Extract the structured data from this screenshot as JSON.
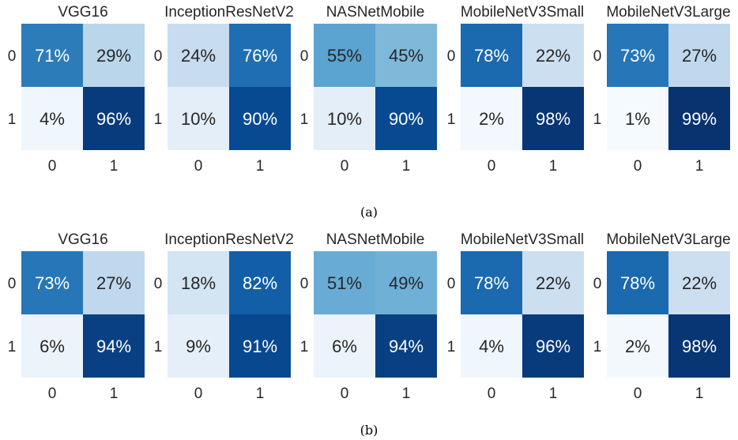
{
  "colors": {
    "cmap": [
      "#f7fbff",
      "#deebf7",
      "#c6dbef",
      "#9ecae1",
      "#6baed6",
      "#4292c6",
      "#2171b5",
      "#08519c",
      "#08306b"
    ],
    "text_dark": "#262626",
    "text_light": "#ffffff"
  },
  "chart_data": [
    {
      "type": "heatmap",
      "caption": "(a)",
      "tick_labels": [
        "0",
        "1"
      ],
      "panels": [
        {
          "title": "VGG16",
          "values": [
            [
              71,
              29
            ],
            [
              4,
              96
            ]
          ]
        },
        {
          "title": "InceptionResNetV2",
          "values": [
            [
              24,
              76
            ],
            [
              10,
              90
            ]
          ]
        },
        {
          "title": "NASNetMobile",
          "values": [
            [
              55,
              45
            ],
            [
              10,
              90
            ]
          ]
        },
        {
          "title": "MobileNetV3Small",
          "values": [
            [
              78,
              22
            ],
            [
              2,
              98
            ]
          ]
        },
        {
          "title": "MobileNetV3Large",
          "values": [
            [
              73,
              27
            ],
            [
              1,
              99
            ]
          ]
        }
      ]
    },
    {
      "type": "heatmap",
      "caption": "(b)",
      "tick_labels": [
        "0",
        "1"
      ],
      "panels": [
        {
          "title": "VGG16",
          "values": [
            [
              73,
              27
            ],
            [
              6,
              94
            ]
          ]
        },
        {
          "title": "InceptionResNetV2",
          "values": [
            [
              18,
              82
            ],
            [
              9,
              91
            ]
          ]
        },
        {
          "title": "NASNetMobile",
          "values": [
            [
              51,
              49
            ],
            [
              6,
              94
            ]
          ]
        },
        {
          "title": "MobileNetV3Small",
          "values": [
            [
              78,
              22
            ],
            [
              4,
              96
            ]
          ]
        },
        {
          "title": "MobileNetV3Large",
          "values": [
            [
              78,
              22
            ],
            [
              2,
              98
            ]
          ]
        }
      ]
    }
  ]
}
